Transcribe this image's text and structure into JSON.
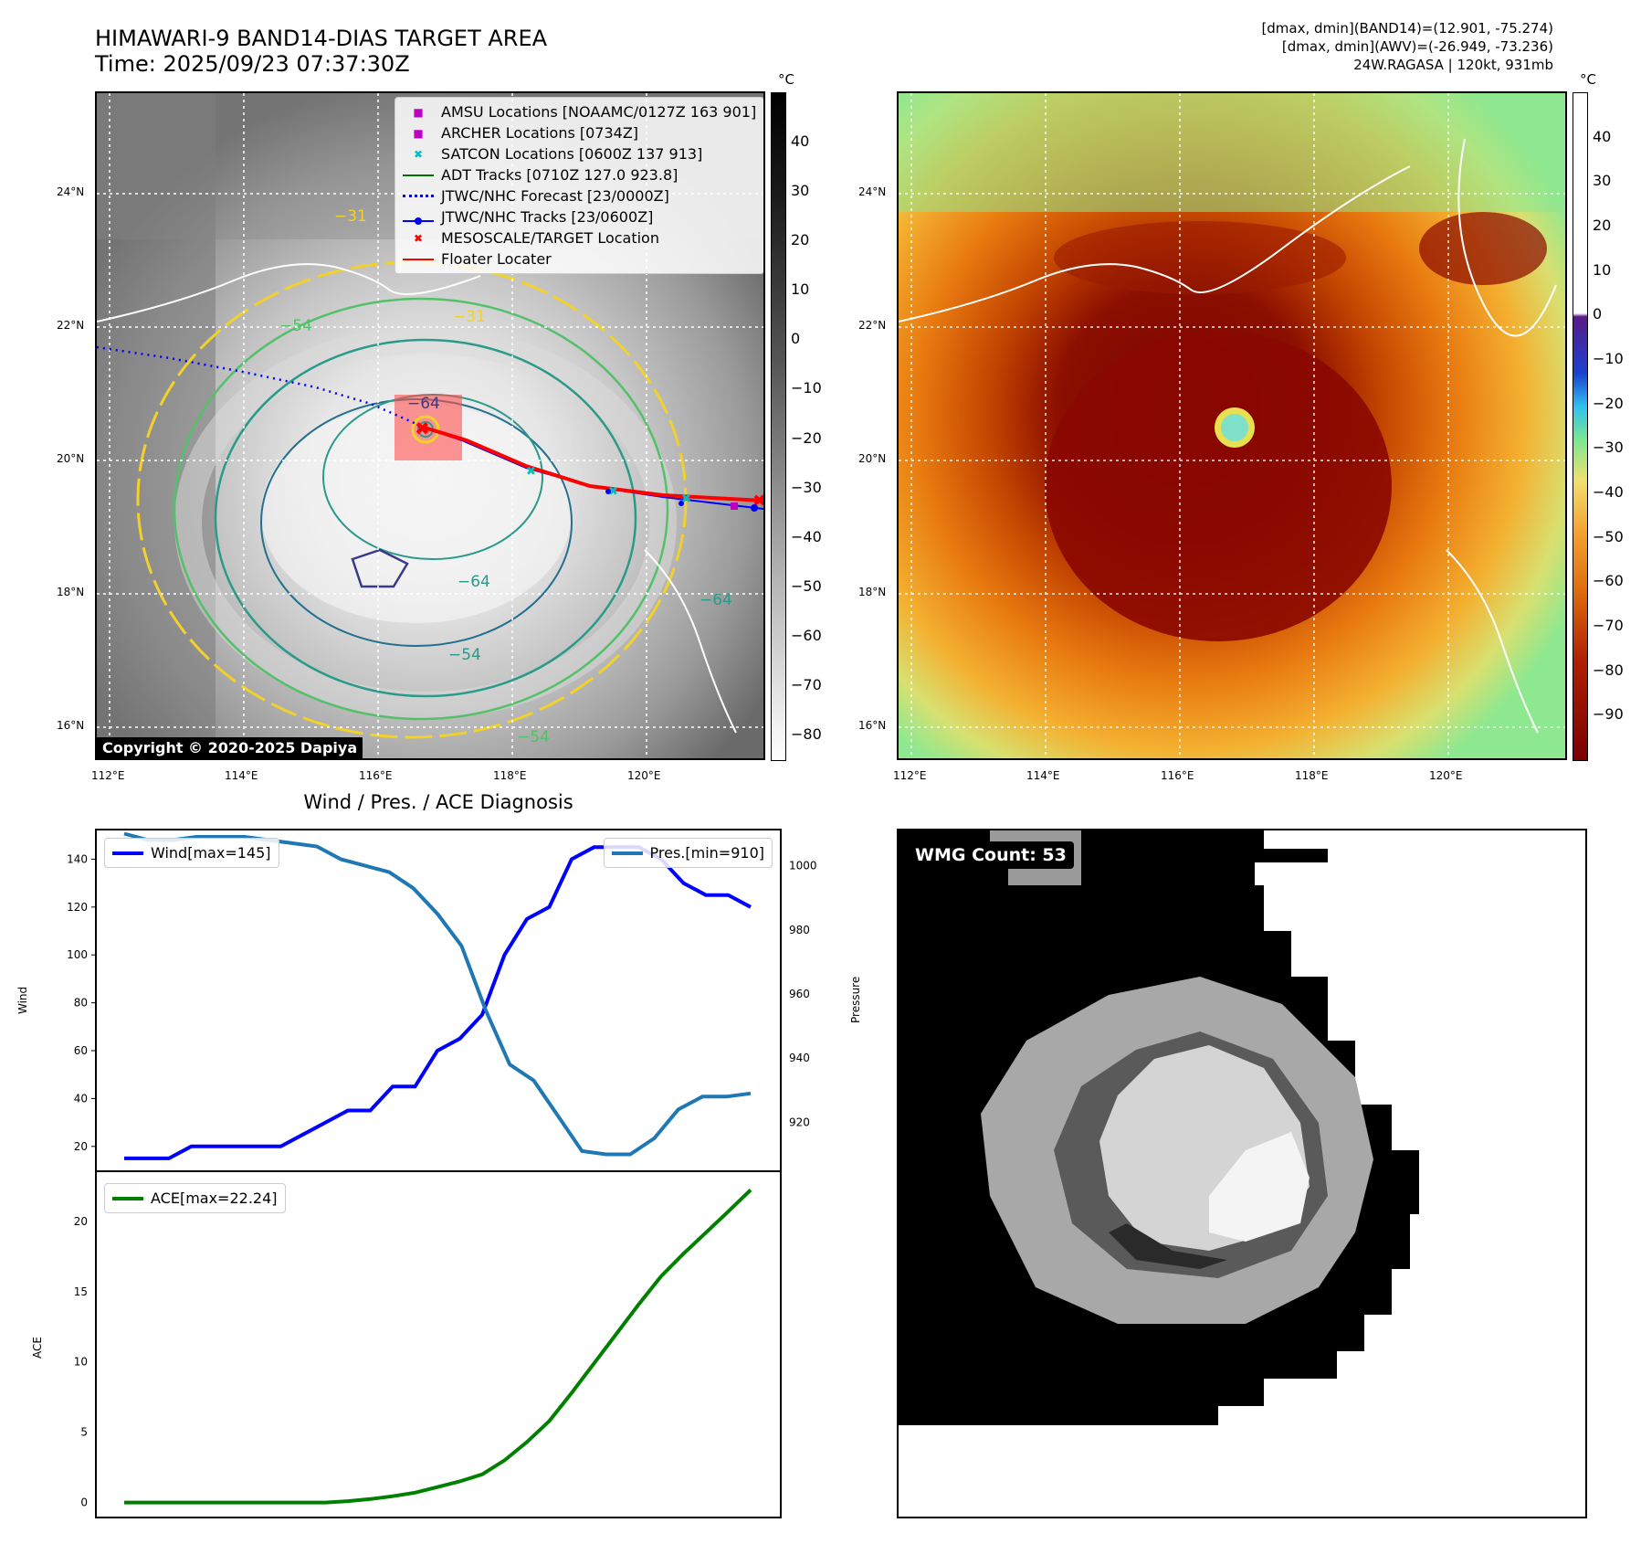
{
  "header": {
    "title_line1": "HIMAWARI-9 BAND14-DIAS TARGET AREA",
    "title_line2": "Time: 2025/09/23 07:37:30Z",
    "right_line1": "[dmax, dmin](BAND14)=(12.901, -75.274)",
    "right_line2": "[dmax, dmin](AWV)=(-26.949, -73.236)",
    "right_line3": "24W.RAGASA | 120kt, 931mb"
  },
  "map_panel": {
    "lat_labels": [
      "24°N",
      "22°N",
      "20°N",
      "18°N",
      "16°N"
    ],
    "lon_labels": [
      "112°E",
      "114°E",
      "116°E",
      "118°E",
      "120°E"
    ],
    "copyright": "Copyright © 2020-2025 Dapiya",
    "colorbar_unit": "°C",
    "colorbar_ticks": [
      "40",
      "30",
      "20",
      "10",
      "0",
      "−10",
      "−20",
      "−30",
      "−40",
      "−50",
      "−60",
      "−70",
      "−80"
    ],
    "contour_labels": [
      "−64",
      "−64",
      "−54",
      "−54",
      "−31",
      "−31",
      "−54",
      "−64"
    ],
    "legend": [
      {
        "label": "AMSU Locations [NOAAMC/0127Z 163 901]",
        "symbol": "■",
        "color": "#c000c0"
      },
      {
        "label": "ARCHER Locations [0734Z]",
        "symbol": "■",
        "color": "#c000c0"
      },
      {
        "label": "SATCON Locations [0600Z 137 913]",
        "symbol": "✖",
        "color": "#00c0c0"
      },
      {
        "label": "ADT Tracks [0710Z 127.0 923.8]",
        "symbol": "line",
        "color": "#007000"
      },
      {
        "label": "JTWC/NHC Forecast [23/0000Z]",
        "symbol": "dotted",
        "color": "#0000ff"
      },
      {
        "label": "JTWC/NHC Tracks [23/0600Z]",
        "symbol": "linedot",
        "color": "#0000ff"
      },
      {
        "label": "MESOSCALE/TARGET Location",
        "symbol": "✖",
        "color": "#ff0000"
      },
      {
        "label": "Floater Locater",
        "symbol": "line",
        "color": "#ff0000"
      }
    ]
  },
  "awv_panel": {
    "lat_labels": [
      "24°N",
      "22°N",
      "20°N",
      "18°N",
      "16°N"
    ],
    "lon_labels": [
      "112°E",
      "114°E",
      "116°E",
      "118°E",
      "120°E"
    ],
    "colorbar_unit": "°C",
    "colorbar_ticks": [
      "40",
      "30",
      "20",
      "10",
      "0",
      "−10",
      "−20",
      "−30",
      "−40",
      "−50",
      "−60",
      "−70",
      "−80",
      "−90"
    ]
  },
  "wmg_panel": {
    "badge": "WMG Count: 53"
  },
  "diag": {
    "title": "Wind / Pres. / ACE Diagnosis",
    "wind_ylabel": "Wind",
    "pres_ylabel": "Pressure",
    "ace_ylabel": "ACE"
  },
  "colors": {
    "wind": "#0000ff",
    "pressure": "#1f77b4",
    "ace": "#008000",
    "track_red": "#ff0000"
  },
  "chart_data": [
    {
      "type": "line",
      "title": "",
      "xlabel": "",
      "ylabel": "Wind",
      "y2label": "Pressure",
      "ylim": [
        10,
        152
      ],
      "y2lim": [
        905,
        1011
      ],
      "yticks": [
        20,
        40,
        60,
        80,
        100,
        120,
        140
      ],
      "y2ticks": [
        920,
        940,
        960,
        980,
        1000
      ],
      "series": [
        {
          "name": "Wind[max=145]",
          "axis": "left",
          "values": [
            15,
            15,
            15,
            20,
            20,
            20,
            20,
            20,
            25,
            30,
            35,
            35,
            45,
            45,
            60,
            65,
            75,
            100,
            115,
            120,
            140,
            145,
            145,
            145,
            140,
            130,
            125,
            125,
            120
          ]
        },
        {
          "name": "Pres.[min=910]",
          "axis": "right",
          "values": [
            1010,
            1008,
            1008,
            1009,
            1009,
            1009,
            1008,
            1007,
            1006,
            1002,
            1000,
            998,
            993,
            985,
            975,
            955,
            938,
            933,
            922,
            911,
            910,
            910,
            915,
            924,
            928,
            928,
            929
          ]
        }
      ]
    },
    {
      "type": "line",
      "title": "",
      "xlabel": "",
      "ylabel": "ACE",
      "ylim": [
        -1,
        23.5
      ],
      "yticks": [
        0,
        5,
        10,
        15,
        20
      ],
      "series": [
        {
          "name": "ACE[max=22.24]",
          "values": [
            0.0,
            0.0,
            0.0,
            0.0,
            0.0,
            0.0,
            0.0,
            0.0,
            0.0,
            0.0,
            0.1,
            0.25,
            0.45,
            0.7,
            1.1,
            1.5,
            2.0,
            3.0,
            4.3,
            5.8,
            7.8,
            9.9,
            12.0,
            14.1,
            16.1,
            17.7,
            19.2,
            20.7,
            22.24
          ]
        }
      ]
    }
  ]
}
